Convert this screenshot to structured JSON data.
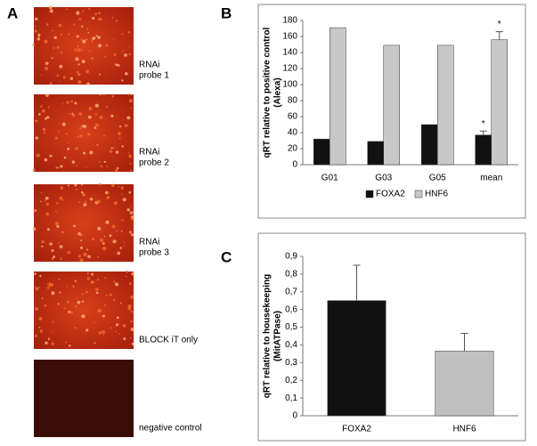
{
  "panel_a": {
    "letter": "A",
    "images": [
      {
        "label": [
          "RNAi",
          "probe 1"
        ]
      },
      {
        "label": [
          "RNAi",
          "probe 2"
        ]
      },
      {
        "label": [
          "RNAi",
          "probe 3"
        ]
      },
      {
        "label": [
          "BLOCK iT only"
        ]
      },
      {
        "label": [
          "negative control"
        ]
      }
    ]
  },
  "chart_data": [
    {
      "type": "bar",
      "panel": "B",
      "ylabel": [
        "qRT relative to positive control",
        "(Alexa)"
      ],
      "categories": [
        "G01",
        "G03",
        "G05",
        "mean"
      ],
      "series": [
        {
          "name": "FOXA2",
          "color": "#111111",
          "values": [
            32,
            29,
            50,
            37
          ],
          "errors": [
            null,
            null,
            null,
            5
          ],
          "annotations": [
            null,
            null,
            null,
            "*"
          ]
        },
        {
          "name": "HNF6",
          "color": "#c8c8c8",
          "values": [
            171,
            149,
            149,
            156
          ],
          "errors": [
            null,
            null,
            null,
            10
          ],
          "annotations": [
            null,
            null,
            null,
            "*"
          ]
        }
      ],
      "ylim": [
        0,
        180
      ],
      "yticks": [
        0,
        20,
        40,
        60,
        80,
        100,
        120,
        140,
        160,
        180
      ],
      "grid": false,
      "legend": "bottom"
    },
    {
      "type": "bar",
      "panel": "C",
      "ylabel": [
        "qRT relative to housekeeping",
        "(MitATPase)"
      ],
      "categories": [
        "FOXA2",
        "HNF6"
      ],
      "series": [
        {
          "colors": [
            "#111111",
            "#c0c0c0"
          ],
          "values": [
            0.65,
            0.365
          ],
          "errors": [
            0.2,
            0.1
          ]
        }
      ],
      "ylim": [
        0,
        0.9
      ],
      "yticks": [
        0,
        {
          "value": 0.1,
          "label": "0,1"
        },
        {
          "value": 0.2,
          "label": "0,2"
        },
        {
          "value": 0.3,
          "label": "0,3"
        },
        {
          "value": 0.4,
          "label": "0,4"
        },
        {
          "value": 0.5,
          "label": "0,5"
        },
        {
          "value": 0.6,
          "label": "0,6"
        },
        {
          "value": 0.7,
          "label": "0,7"
        },
        {
          "value": 0.8,
          "label": "0,8"
        },
        {
          "value": 0.9,
          "label": "0,9"
        }
      ],
      "grid": false
    }
  ]
}
